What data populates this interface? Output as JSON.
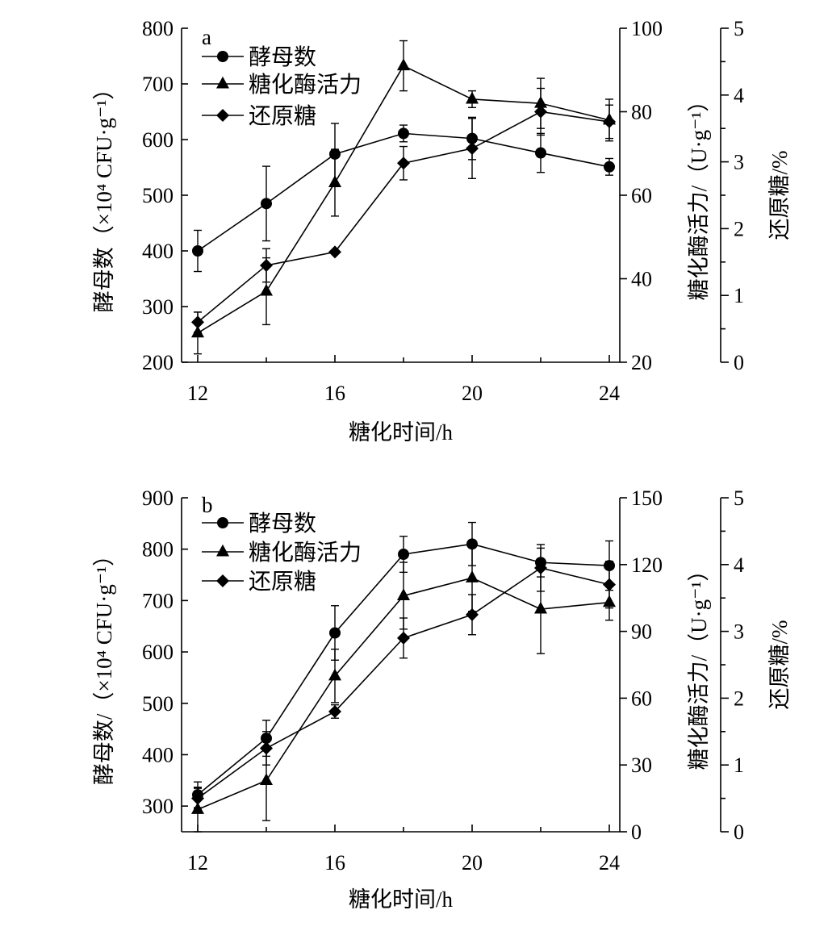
{
  "chart_data": [
    {
      "panel_label": "a",
      "type": "line",
      "xlabel": "糖化时间/h",
      "x_ticks": [
        12,
        16,
        20,
        24
      ],
      "left_axis": {
        "label": "酵母数（×10⁴ CFU·g⁻¹）",
        "ylim": [
          200,
          800
        ],
        "ticks": [
          200,
          300,
          400,
          500,
          600,
          700,
          800
        ]
      },
      "right_axis_1": {
        "label": "糖化酶活力/（U·g⁻¹）",
        "ylim": [
          20,
          100
        ],
        "ticks": [
          20,
          40,
          60,
          80,
          100
        ]
      },
      "right_axis_2": {
        "label": "还原糖/%",
        "ylim": [
          0,
          5
        ],
        "ticks": [
          0,
          1,
          2,
          3,
          4,
          5
        ]
      },
      "legend": [
        "酵母数",
        "糖化酶活力",
        "还原糖"
      ],
      "series": [
        {
          "name": "酵母数",
          "marker": "circle",
          "axis": "left",
          "x": [
            12,
            14,
            16,
            18,
            20,
            22,
            24
          ],
          "y": [
            400,
            485,
            574,
            611,
            602,
            576,
            551
          ],
          "err": [
            37,
            67,
            55,
            15,
            38,
            35,
            15
          ]
        },
        {
          "name": "糖化酶活力",
          "marker": "triangle",
          "axis": "right1",
          "x": [
            12,
            14,
            16,
            18,
            20,
            22,
            24
          ],
          "y": [
            27,
            37,
            63,
            91,
            83,
            82,
            78
          ],
          "err": [
            5,
            8,
            8,
            6,
            2,
            6,
            5
          ]
        },
        {
          "name": "还原糖",
          "marker": "diamond",
          "axis": "right2",
          "x": [
            12,
            14,
            16,
            18,
            20,
            22,
            24
          ],
          "y": [
            0.6,
            1.45,
            1.65,
            2.98,
            3.2,
            3.75,
            3.6
          ],
          "err": [
            0.15,
            0.25,
            0,
            0.25,
            0.45,
            0.35,
            0.25
          ]
        }
      ]
    },
    {
      "panel_label": "b",
      "type": "line",
      "xlabel": "糖化时间/h",
      "x_ticks": [
        12,
        16,
        20,
        24
      ],
      "left_axis": {
        "label": "酵母数/（×10⁴ CFU·g⁻¹）",
        "ylim": [
          250,
          900
        ],
        "ticks": [
          300,
          400,
          500,
          600,
          700,
          800,
          900
        ]
      },
      "right_axis_1": {
        "label": "糖化酶活力/（U·g⁻¹）",
        "ylim": [
          0,
          150
        ],
        "ticks": [
          0,
          30,
          60,
          90,
          120,
          150
        ]
      },
      "right_axis_2": {
        "label": "还原糖/%",
        "ylim": [
          0,
          5
        ],
        "ticks": [
          0,
          1,
          2,
          3,
          4,
          5
        ]
      },
      "legend": [
        "酵母数",
        "糖化酶活力",
        "还原糖"
      ],
      "series": [
        {
          "name": "酵母数",
          "marker": "circle",
          "axis": "left",
          "x": [
            12,
            14,
            16,
            18,
            20,
            22,
            24
          ],
          "y": [
            322,
            432,
            637,
            790,
            810,
            774,
            768
          ],
          "err": [
            25,
            35,
            53,
            35,
            42,
            28,
            48
          ]
        },
        {
          "name": "糖化酶活力",
          "marker": "triangle",
          "axis": "right1",
          "x": [
            12,
            14,
            16,
            18,
            20,
            22,
            24
          ],
          "y": [
            10,
            23,
            70,
            106,
            114,
            100,
            103
          ],
          "err": [
            10,
            18,
            12,
            15,
            15,
            20,
            8
          ]
        },
        {
          "name": "还原糖",
          "marker": "diamond",
          "axis": "right2",
          "x": [
            12,
            14,
            16,
            18,
            20,
            22,
            24
          ],
          "y": [
            0.5,
            1.25,
            1.8,
            2.9,
            3.25,
            3.95,
            3.7
          ],
          "err": [
            0.15,
            0.25,
            0.1,
            0.3,
            0.3,
            0.35,
            0.35
          ]
        }
      ]
    }
  ]
}
